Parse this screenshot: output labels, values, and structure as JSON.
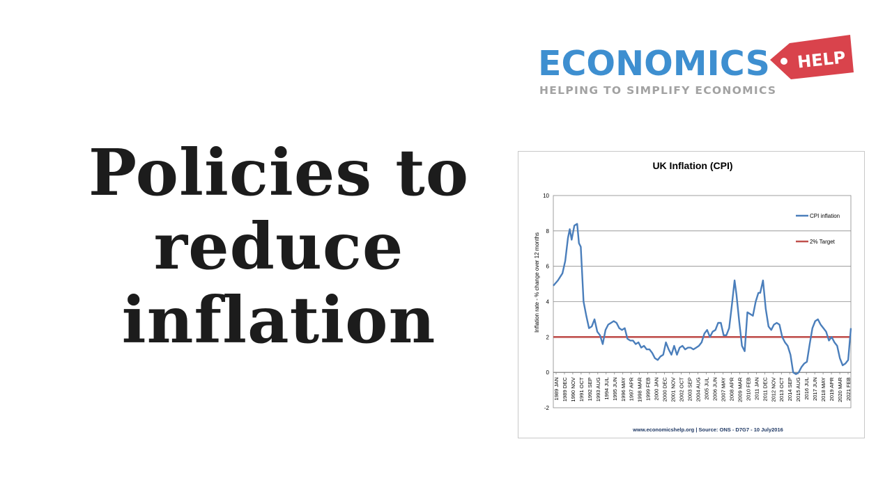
{
  "headline": {
    "line1": "Policies to",
    "line2": "reduce",
    "line3": "inflation"
  },
  "logo": {
    "word": "ECONOMICS",
    "tag": "HELP",
    "tagline": "HELPING TO SIMPLIFY ECONOMICS",
    "colors": {
      "word": "#3e8fd0",
      "tag": "#d9434c",
      "tagline": "#a2a2a2"
    }
  },
  "chart_data": {
    "type": "line",
    "title": "UK Inflation (CPI)",
    "ylabel": "Inflation rate - % change over 12 months",
    "xlabel": "",
    "ylim": [
      -2,
      10
    ],
    "yticks": [
      -2,
      0,
      2,
      4,
      6,
      8,
      10
    ],
    "grid": true,
    "legend": "right",
    "source": "www.economicshelp.org | Source: ONS - D7G7 - 10 July2016",
    "x_tick_labels": [
      "1989 JAN",
      "1989 DEC",
      "1990 NOV",
      "1991 OCT",
      "1992 SEP",
      "1993 AUG",
      "1994 JUL",
      "1995 JUN",
      "1996 MAY",
      "1997 APR",
      "1998 MAR",
      "1999 FEB",
      "2000 JAN",
      "2000 DEC",
      "2001 NOV",
      "2002 OCT",
      "2003 SEP",
      "2004 AUG",
      "2005 JUL",
      "2006 JUN",
      "2007 MAY",
      "2008 APR",
      "2009 MAR",
      "2010 FEB",
      "2011 JAN",
      "2011 DEC",
      "2012 NOV",
      "2013 OCT",
      "2014 SEP",
      "2015 AUG",
      "2016 JUL",
      "2017 JUN",
      "2018 MAY",
      "2019 APR",
      "2020 MAR",
      "2021 FEB"
    ],
    "series": [
      {
        "name": "CPI inflation",
        "color": "#4a7ebb",
        "x": [
          1989.0,
          1989.5,
          1990.0,
          1990.3,
          1990.6,
          1990.8,
          1991.0,
          1991.3,
          1991.6,
          1991.8,
          1992.0,
          1992.3,
          1992.6,
          1992.9,
          1993.2,
          1993.5,
          1993.8,
          1994.1,
          1994.4,
          1994.7,
          1995.0,
          1995.3,
          1995.6,
          1995.9,
          1996.2,
          1996.5,
          1996.8,
          1997.1,
          1997.4,
          1997.7,
          1998.0,
          1998.3,
          1998.6,
          1998.9,
          1999.2,
          1999.5,
          1999.8,
          2000.1,
          2000.4,
          2000.7,
          2001.0,
          2001.3,
          2001.6,
          2001.9,
          2002.2,
          2002.5,
          2002.8,
          2003.1,
          2003.4,
          2003.7,
          2004.0,
          2004.3,
          2004.6,
          2004.9,
          2005.2,
          2005.5,
          2005.8,
          2006.1,
          2006.4,
          2006.7,
          2007.0,
          2007.3,
          2007.6,
          2007.9,
          2008.2,
          2008.5,
          2008.8,
          2009.0,
          2009.3,
          2009.6,
          2009.9,
          2010.2,
          2010.5,
          2010.8,
          2011.1,
          2011.4,
          2011.6,
          2011.9,
          2012.2,
          2012.5,
          2012.8,
          2013.1,
          2013.4,
          2013.7,
          2014.0,
          2014.3,
          2014.6,
          2014.9,
          2015.2,
          2015.5,
          2015.8,
          2016.1,
          2016.4,
          2016.7,
          2017.0,
          2017.3,
          2017.6,
          2017.9,
          2018.2,
          2018.5,
          2018.8,
          2019.1,
          2019.4,
          2019.7,
          2020.0,
          2020.3,
          2020.6,
          2020.9,
          2021.2,
          2021.5
        ],
        "values": [
          4.9,
          5.2,
          5.6,
          6.3,
          7.6,
          8.1,
          7.5,
          8.3,
          8.4,
          7.3,
          7.1,
          4.0,
          3.2,
          2.5,
          2.6,
          3.0,
          2.3,
          2.1,
          1.6,
          2.4,
          2.7,
          2.8,
          2.9,
          2.8,
          2.5,
          2.4,
          2.5,
          1.9,
          1.8,
          1.8,
          1.6,
          1.7,
          1.4,
          1.5,
          1.3,
          1.3,
          1.1,
          0.8,
          0.7,
          0.9,
          1.0,
          1.7,
          1.3,
          1.0,
          1.5,
          1.0,
          1.4,
          1.5,
          1.3,
          1.4,
          1.4,
          1.3,
          1.4,
          1.5,
          1.7,
          2.2,
          2.4,
          2.0,
          2.3,
          2.4,
          2.8,
          2.8,
          2.1,
          2.1,
          2.5,
          3.8,
          5.2,
          4.4,
          2.9,
          1.5,
          1.2,
          3.4,
          3.3,
          3.2,
          4.0,
          4.5,
          4.5,
          5.2,
          3.6,
          2.6,
          2.4,
          2.7,
          2.8,
          2.7,
          2.0,
          1.7,
          1.5,
          1.0,
          0.0,
          -0.1,
          0.0,
          0.3,
          0.5,
          0.6,
          1.6,
          2.5,
          2.9,
          3.0,
          2.7,
          2.5,
          2.3,
          1.8,
          2.0,
          1.7,
          1.5,
          0.8,
          0.4,
          0.5,
          0.7,
          2.5
        ]
      },
      {
        "name": "2% Target",
        "color": "#c0504d",
        "x": [
          1989.0,
          2021.5
        ],
        "values": [
          2,
          2
        ]
      }
    ]
  }
}
